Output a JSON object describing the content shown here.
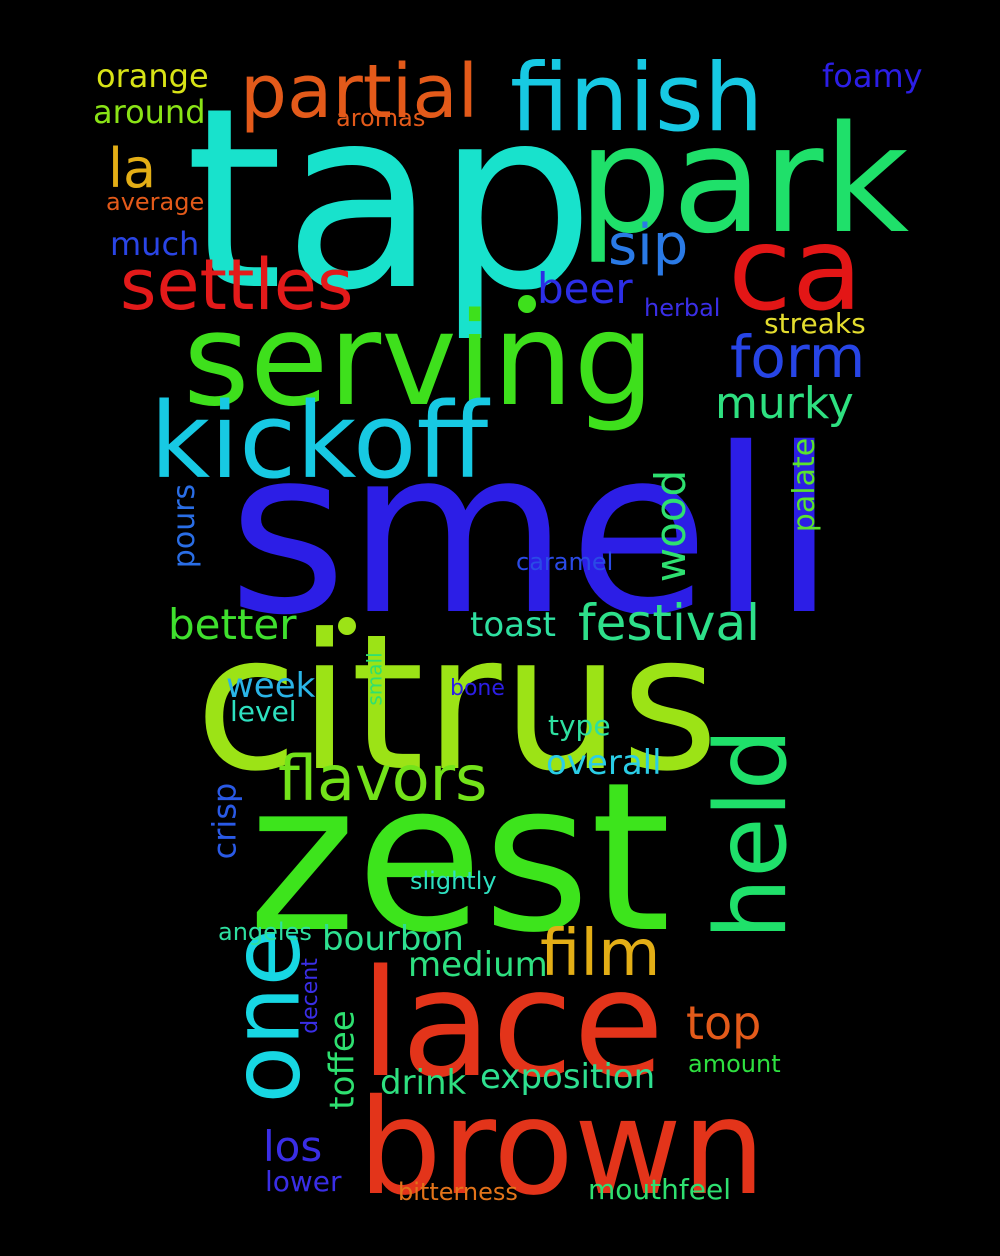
{
  "words": [
    {
      "text": "tap",
      "color": "#18e2cc"
    },
    {
      "text": "smell",
      "color": "#2c1ee6"
    },
    {
      "text": "citrus",
      "color": "#9ce316"
    },
    {
      "text": "zest",
      "color": "#3de41c"
    },
    {
      "text": "serving",
      "color": "#3ee01c"
    },
    {
      "text": "park",
      "color": "#1fe06a"
    },
    {
      "text": "lace",
      "color": "#e3341a"
    },
    {
      "text": "brown",
      "color": "#e3341a"
    },
    {
      "text": "kickoff",
      "color": "#17c9e3"
    },
    {
      "text": "finish",
      "color": "#17c9e3"
    },
    {
      "text": "ca",
      "color": "#e31616"
    },
    {
      "text": "held",
      "color": "#1fe06a"
    },
    {
      "text": "one",
      "color": "#17d7e3"
    },
    {
      "text": "partial",
      "color": "#e35a1a"
    },
    {
      "text": "settles",
      "color": "#e31a1a"
    },
    {
      "text": "flavors",
      "color": "#73e31a"
    },
    {
      "text": "film",
      "color": "#e3ae16"
    },
    {
      "text": "form",
      "color": "#2745e6"
    },
    {
      "text": "festival",
      "color": "#2ee08a"
    },
    {
      "text": "sip",
      "color": "#2a7ae6"
    },
    {
      "text": "wood",
      "color": "#2ee070"
    },
    {
      "text": "murky",
      "color": "#2ee080"
    },
    {
      "text": "better",
      "color": "#3fe02e"
    },
    {
      "text": "top",
      "color": "#e35a1a"
    },
    {
      "text": "la",
      "color": "#e3ae16"
    },
    {
      "text": "beer",
      "color": "#2c2ee6"
    },
    {
      "text": "los",
      "color": "#3a2ee6"
    },
    {
      "text": "exposition",
      "color": "#2ee090"
    },
    {
      "text": "medium",
      "color": "#2ee080"
    },
    {
      "text": "bourbon",
      "color": "#2ee090"
    },
    {
      "text": "toffee",
      "color": "#2ee070"
    },
    {
      "text": "drink",
      "color": "#2ee080"
    },
    {
      "text": "toast",
      "color": "#2ee0a0"
    },
    {
      "text": "week",
      "color": "#2ab4e6"
    },
    {
      "text": "overall",
      "color": "#2acde6"
    },
    {
      "text": "orange",
      "color": "#d8e316"
    },
    {
      "text": "around",
      "color": "#8ae316"
    },
    {
      "text": "foamy",
      "color": "#2c1ee6"
    },
    {
      "text": "much",
      "color": "#2a45e6"
    },
    {
      "text": "crisp",
      "color": "#2a5ae6"
    },
    {
      "text": "pours",
      "color": "#2a6ee6"
    },
    {
      "text": "palate",
      "color": "#5ae32e"
    },
    {
      "text": "streaks",
      "color": "#e3dc2e"
    },
    {
      "text": "mouthfeel",
      "color": "#2ee070"
    },
    {
      "text": "lower",
      "color": "#3a2ee6"
    },
    {
      "text": "type",
      "color": "#2ee0a0"
    },
    {
      "text": "level",
      "color": "#2ee0c0"
    },
    {
      "text": "caramel",
      "color": "#2a4ae6"
    },
    {
      "text": "bitterness",
      "color": "#e3741a"
    },
    {
      "text": "slightly",
      "color": "#2ee0c0"
    },
    {
      "text": "angeles",
      "color": "#2ee0a0"
    },
    {
      "text": "amount",
      "color": "#2ee040"
    },
    {
      "text": "aromas",
      "color": "#e35a1a"
    },
    {
      "text": "average",
      "color": "#e35a1a"
    },
    {
      "text": "herbal",
      "color": "#3a2ee6"
    },
    {
      "text": "bone",
      "color": "#2c1ee6"
    },
    {
      "text": "small",
      "color": "#2ee070"
    },
    {
      "text": "decent",
      "color": "#3a2ee6"
    }
  ],
  "dots": [
    {
      "color": "#3ee01c"
    },
    {
      "color": "#9ce316"
    }
  ]
}
